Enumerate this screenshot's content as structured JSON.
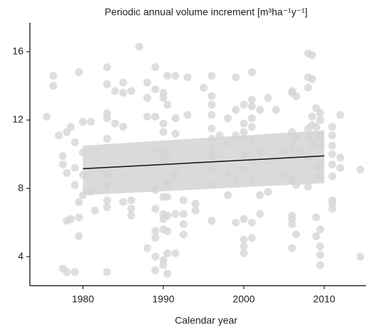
{
  "chart_data": {
    "type": "scatter",
    "title": "Periodic annual volume increment [m³ha⁻¹y⁻¹]",
    "x_label": "Calendar year",
    "point_color": "#d6d6d6",
    "x": [
      1975.5,
      1976.3,
      1976.3,
      1977,
      1977.5,
      1977.5,
      1977.5,
      1978,
      1978,
      1978,
      1978,
      1978.5,
      1978.5,
      1979,
      1979,
      1979,
      1979,
      1979.5,
      1979.5,
      1979.5,
      1979.5,
      1980,
      1980,
      1980,
      1980,
      1981,
      1981,
      1981.5,
      1983,
      1983,
      1983,
      1983,
      1983,
      1983,
      1983,
      1983,
      1983,
      1983,
      1984,
      1984,
      1985,
      1985,
      1985,
      1985,
      1986,
      1986,
      1986,
      1986,
      1987,
      1988,
      1988,
      1988,
      1988,
      1989,
      1989,
      1989,
      1989,
      1989,
      1989,
      1989,
      1989,
      1989,
      1989,
      1990,
      1990,
      1990,
      1990,
      1990,
      1990,
      1990,
      1990,
      1990,
      1990,
      1990,
      1990,
      1990.5,
      1990.5,
      1990.5,
      1990.5,
      1990.5,
      1990.5,
      1990.5,
      1990.5,
      1990.5,
      1991.5,
      1991.5,
      1991.5,
      1991.5,
      1991.5,
      1991.5,
      1992.5,
      1992.5,
      1992.5,
      1992.5,
      1993,
      1993,
      1994,
      1994,
      1995,
      1996,
      1996,
      1996,
      1996,
      1996,
      1996,
      1996,
      1996,
      1996,
      1996,
      1996,
      1997,
      1998,
      1998,
      1998,
      1998,
      1999,
      1999,
      1999,
      1999,
      1999,
      2000,
      2000,
      2000,
      2000,
      2000,
      2000,
      2000,
      2000,
      2000,
      2000,
      2001,
      2001,
      2001,
      2001,
      2001,
      2001,
      2001,
      2001,
      2001,
      2001,
      2002,
      2002,
      2002,
      2002,
      2003,
      2003,
      2003,
      2004,
      2005,
      2005,
      2006,
      2006,
      2006,
      2006,
      2006,
      2006,
      2006,
      2006,
      2006,
      2006.5,
      2006.5,
      2006.5,
      2006.5,
      2007,
      2008,
      2008,
      2008,
      2008,
      2008,
      2008,
      2008,
      2008.5,
      2008.5,
      2008.5,
      2008.5,
      2008.5,
      2009,
      2009,
      2009,
      2009,
      2009,
      2009.5,
      2009.5,
      2009.5,
      2009.5,
      2009.5,
      2009.5,
      2009.5,
      2009.5,
      2009.5,
      2009.5,
      2011,
      2011,
      2011,
      2011,
      2011,
      2011,
      2011,
      2011,
      2011,
      2012,
      2012,
      2012,
      2014.5,
      2014.5
    ],
    "y": [
      12.2,
      14.6,
      14.0,
      11.1,
      9.9,
      9.4,
      3.3,
      11.3,
      8.9,
      6.1,
      3.1,
      11.6,
      6.2,
      10.7,
      8.2,
      9.2,
      3.1,
      14.8,
      6.3,
      5.2,
      7.2,
      11.9,
      10.1,
      8.8,
      7.6,
      11.9,
      7.8,
      6.7,
      15.1,
      14.1,
      12.4,
      12.1,
      10.9,
      8.8,
      8.1,
      7.3,
      6.9,
      3.1,
      11.8,
      13.7,
      14.2,
      13.6,
      11.6,
      7.2,
      13.7,
      7.3,
      6.8,
      6.4,
      16.3,
      14.2,
      13.3,
      12.2,
      4.5,
      15.1,
      13.8,
      12.2,
      10.3,
      7.9,
      6.8,
      5.5,
      5.1,
      4.0,
      3.2,
      13.6,
      13.3,
      11.8,
      11.3,
      10.2,
      9.7,
      7.5,
      6.5,
      6.2,
      5.6,
      3.8,
      3.5,
      14.6,
      12.9,
      9.8,
      8.3,
      7.5,
      6.4,
      5.5,
      4.2,
      3.0,
      14.6,
      12.1,
      11.2,
      8.8,
      6.5,
      4.2,
      7.3,
      6.5,
      5.9,
      5.3,
      14.5,
      12.3,
      7.1,
      6.7,
      13.9,
      14.6,
      13.4,
      12.9,
      12.3,
      11.5,
      10.9,
      10.4,
      9.9,
      9.1,
      8.2,
      6.1,
      11.1,
      12.1,
      10.7,
      8.9,
      7.6,
      14.5,
      12.6,
      11.1,
      8.5,
      6.0,
      12.9,
      11.8,
      11.3,
      10.9,
      10.0,
      9.1,
      6.2,
      5.0,
      4.6,
      4.2,
      14.8,
      13.2,
      12.8,
      12.1,
      11.6,
      10.8,
      9.7,
      8.5,
      6.0,
      5.1,
      12.6,
      10.1,
      7.6,
      6.5,
      13.3,
      9.6,
      7.8,
      12.6,
      10.2,
      8.8,
      13.7,
      13.6,
      11.3,
      10.4,
      8.5,
      6.4,
      6.2,
      5.9,
      4.5,
      13.4,
      11.0,
      8.2,
      5.3,
      10.2,
      15.9,
      14.5,
      13.9,
      11.5,
      11.0,
      9.8,
      8.1,
      15.8,
      14.4,
      12.2,
      11.7,
      10.6,
      12.7,
      11.6,
      9.3,
      6.3,
      5.2,
      12.4,
      12.0,
      11.1,
      10.5,
      9.4,
      8.7,
      5.6,
      4.6,
      4.1,
      3.5,
      11.6,
      11.1,
      10.5,
      10.0,
      9.4,
      8.7,
      7.3,
      7.1,
      6.8,
      12.3,
      9.8,
      9.2,
      9.1,
      4.0
    ],
    "fit": {
      "x": [
        1980,
        2010
      ],
      "y": [
        9.15,
        9.9
      ],
      "lower": [
        7.6,
        8.3
      ],
      "upper": [
        10.5,
        11.4
      ],
      "line_color": "#111111",
      "band_color": "#d3d3d3"
    },
    "xlim": [
      1973.4,
      2015.2
    ],
    "ylim": [
      2.3,
      17.7
    ],
    "xticks": [
      1980,
      1990,
      2000,
      2010
    ],
    "yticks": [
      4,
      8,
      12,
      16
    ]
  }
}
